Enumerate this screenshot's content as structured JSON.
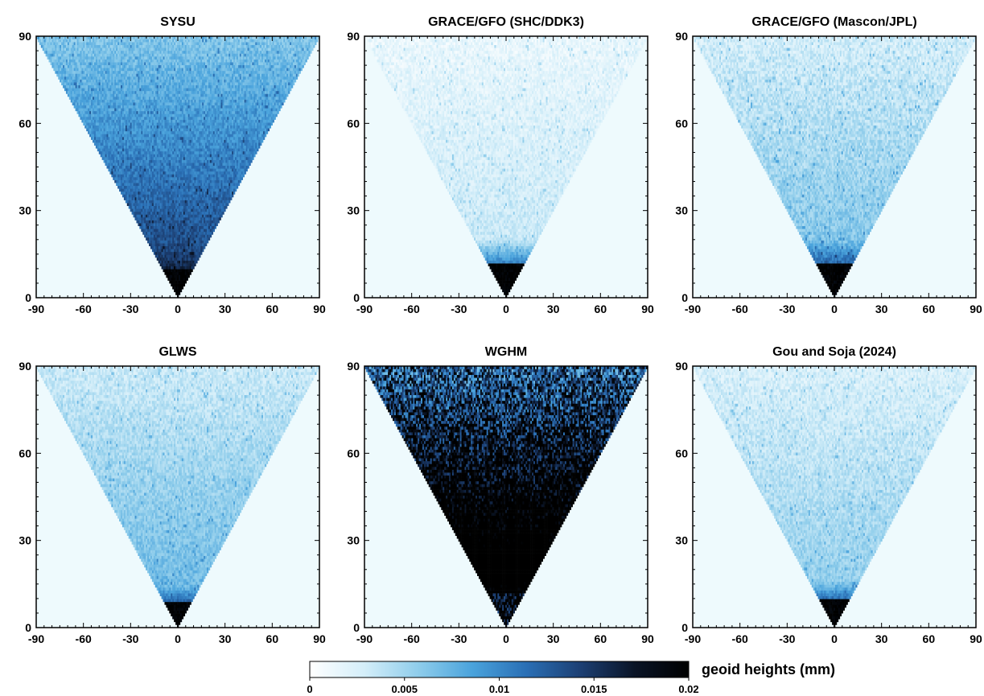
{
  "chart_data": {
    "type": "heatmap",
    "colorbar": {
      "label": "geoid heights (mm)",
      "range": [
        0,
        0.02
      ],
      "ticks": [
        "0",
        "0.005",
        "0.01",
        "0.015",
        "0.02"
      ],
      "colormap": [
        "#ffffff",
        "#d4eef9",
        "#8fcdeb",
        "#4aa3dc",
        "#2a6fb5",
        "#1c3f73",
        "#0a1426",
        "#000000"
      ]
    },
    "axes": {
      "x_ticks": [
        "-90",
        "-60",
        "-30",
        "0",
        "30",
        "60",
        "90"
      ],
      "y_ticks": [
        "0",
        "30",
        "60",
        "90"
      ],
      "xlim": [
        -90,
        90
      ],
      "ylim": [
        0,
        90
      ],
      "background_color": "#eefafd"
    },
    "panels": [
      {
        "title": "SYSU",
        "level_low_degree": 0.02,
        "level_high_degree": 0.0062,
        "noise": 0.0014,
        "dark_until_degree": 16
      },
      {
        "title": "GRACE/GFO (SHC/DDK3)",
        "level_low_degree": 0.02,
        "level_high_degree": 0.0015,
        "noise": 0.0011,
        "dark_until_degree": 20
      },
      {
        "title": "GRACE/GFO (Mascon/JPL)",
        "level_low_degree": 0.02,
        "level_high_degree": 0.0028,
        "noise": 0.0014,
        "dark_until_degree": 20
      },
      {
        "title": "GLWS",
        "level_low_degree": 0.02,
        "level_high_degree": 0.0032,
        "noise": 0.0012,
        "dark_until_degree": 14
      },
      {
        "title": "WGHM",
        "level_low_degree": 0.02,
        "level_high_degree": 0.0125,
        "noise": 0.0065,
        "dark_until_degree": 20
      },
      {
        "title": "Gou and Soja (2024)",
        "level_low_degree": 0.02,
        "level_high_degree": 0.0025,
        "noise": 0.0012,
        "dark_until_degree": 16
      }
    ]
  }
}
